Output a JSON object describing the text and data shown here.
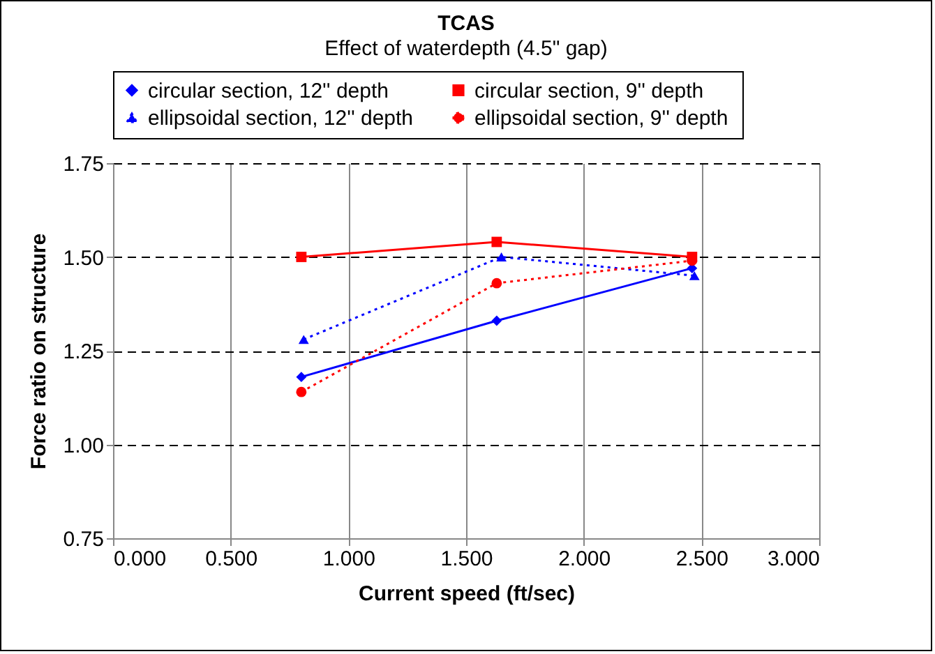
{
  "chart_data": {
    "type": "line",
    "title": "TCAS",
    "subtitle": "Effect of waterdepth (4.5\" gap)",
    "xlabel": "Current speed (ft/sec)",
    "ylabel": "Force ratio on structure",
    "xlim": [
      0,
      3
    ],
    "xticks": [
      {
        "value": 0,
        "label": "0.000"
      },
      {
        "value": 0.5,
        "label": "0.500"
      },
      {
        "value": 1,
        "label": "1.000"
      },
      {
        "value": 1.5,
        "label": "1.500"
      },
      {
        "value": 2,
        "label": "2.000"
      },
      {
        "value": 2.5,
        "label": "2.500"
      },
      {
        "value": 3,
        "label": "3.000"
      }
    ],
    "ylim": [
      0.75,
      1.75
    ],
    "yticks": [
      {
        "value": 0.75,
        "label": "0.75"
      },
      {
        "value": 1,
        "label": "1.00"
      },
      {
        "value": 1.25,
        "label": "1.25"
      },
      {
        "value": 1.5,
        "label": "1.50"
      },
      {
        "value": 1.75,
        "label": "1.75"
      }
    ],
    "grid": true,
    "legend": "top",
    "series": [
      {
        "name": "circular section,  12'' depth",
        "color": "#0000ff",
        "marker": "diamond",
        "line_style": "solid",
        "x": [
          0.8,
          1.63,
          2.46
        ],
        "values": [
          1.18,
          1.33,
          1.47
        ]
      },
      {
        "name": "circular section,  9'' depth",
        "color": "#ff0000",
        "marker": "square",
        "line_style": "solid",
        "x": [
          0.8,
          1.63,
          2.46
        ],
        "values": [
          1.5,
          1.54,
          1.5
        ]
      },
      {
        "name": "ellipsoidal section,  12'' depth",
        "color": "#0000ff",
        "marker": "triangle",
        "line_style": "dotted",
        "x": [
          0.81,
          1.65,
          2.47
        ],
        "values": [
          1.28,
          1.5,
          1.45
        ]
      },
      {
        "name": "ellipsoidal section,  9'' depth",
        "color": "#ff0000",
        "marker": "circle",
        "line_style": "dotted",
        "x": [
          0.8,
          1.63,
          2.46
        ],
        "values": [
          1.14,
          1.43,
          1.49
        ]
      }
    ]
  }
}
